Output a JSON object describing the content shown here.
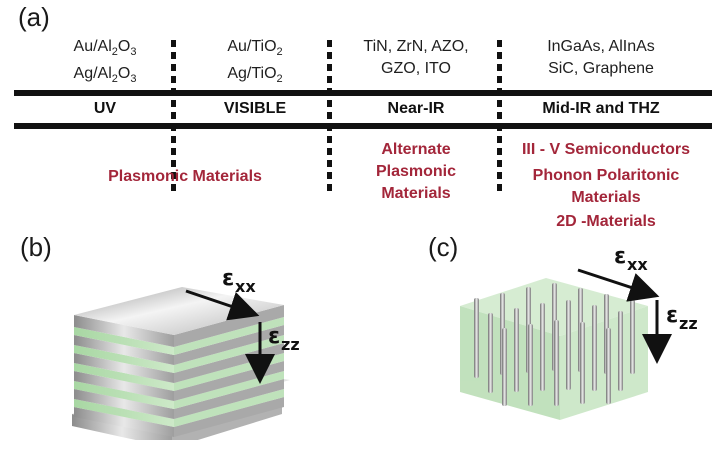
{
  "panels": {
    "a": "(a)",
    "b": "(b)",
    "c": "(c)"
  },
  "top_materials": [
    {
      "line1": "Au/Al2O3",
      "line2": "Ag/Al2O3"
    },
    {
      "line1": "Au/TiO2",
      "line2": "Ag/TiO2"
    },
    {
      "line1": "TiN, ZrN, AZO,",
      "line2": "GZO, ITO"
    },
    {
      "line1": "InGaAs, AlInAs",
      "line2": "SiC, Graphene"
    }
  ],
  "bands": [
    "UV",
    "VISIBLE",
    "Near-IR",
    "Mid-IR and THZ"
  ],
  "categories": {
    "plasmonic": "Plasmonic Materials",
    "alternate": [
      "Alternate",
      "Plasmonic",
      "Materials"
    ],
    "mid_ir": [
      "III - V Semiconductors",
      "Phonon Polaritonic",
      "Materials",
      "2D -Materials"
    ]
  },
  "labels": {
    "eps_xx": "xx",
    "eps_zz": "zz",
    "eps_symbol": "ε"
  },
  "colors": {
    "red_text": "#a3263a",
    "dielectric_green": "#b9dfb5",
    "metal_gray": "#c8c8c8"
  }
}
